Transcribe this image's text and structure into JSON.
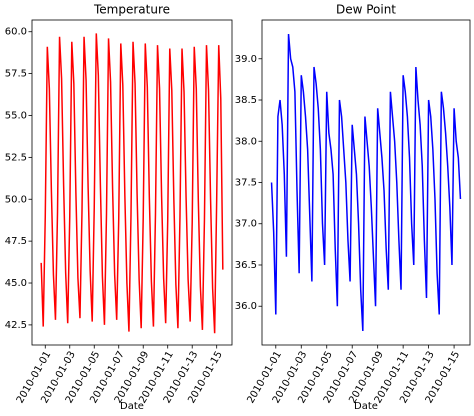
{
  "chart_data": [
    {
      "type": "line",
      "title": "Temperature",
      "x_label": "Date",
      "color": "#ff0000",
      "xlim": [
        "2009-12-30T22:00",
        "2010-01-16T06:00"
      ],
      "xticks": [
        "2010-01-01",
        "2010-01-03",
        "2010-01-05",
        "2010-01-07",
        "2010-01-09",
        "2010-01-11",
        "2010-01-13",
        "2010-01-15"
      ],
      "ylim": [
        41.3,
        60.7
      ],
      "yticks": [
        {
          "value": 42.5,
          "label": "42.5"
        },
        {
          "value": 45,
          "label": "45.0"
        },
        {
          "value": 47.5,
          "label": "47.5"
        },
        {
          "value": 50,
          "label": "50.0"
        },
        {
          "value": 52.5,
          "label": "52.5"
        },
        {
          "value": 55,
          "label": "55.0"
        },
        {
          "value": 57.5,
          "label": "57.5"
        },
        {
          "value": 60,
          "label": "60.0"
        }
      ],
      "x": [
        "2009-12-31T16:00",
        "2009-12-31T20:00",
        "2010-01-01T00:00",
        "2010-01-01T04:00",
        "2010-01-01T08:00",
        "2010-01-01T12:00",
        "2010-01-01T16:00",
        "2010-01-01T20:00",
        "2010-01-02T00:00",
        "2010-01-02T04:00",
        "2010-01-02T08:00",
        "2010-01-02T12:00",
        "2010-01-02T16:00",
        "2010-01-02T20:00",
        "2010-01-03T00:00",
        "2010-01-03T04:00",
        "2010-01-03T08:00",
        "2010-01-03T12:00",
        "2010-01-03T16:00",
        "2010-01-03T20:00",
        "2010-01-04T00:00",
        "2010-01-04T04:00",
        "2010-01-04T08:00",
        "2010-01-04T12:00",
        "2010-01-04T16:00",
        "2010-01-04T20:00",
        "2010-01-05T00:00",
        "2010-01-05T04:00",
        "2010-01-05T08:00",
        "2010-01-05T12:00",
        "2010-01-05T16:00",
        "2010-01-05T20:00",
        "2010-01-06T00:00",
        "2010-01-06T04:00",
        "2010-01-06T08:00",
        "2010-01-06T12:00",
        "2010-01-06T16:00",
        "2010-01-06T20:00",
        "2010-01-07T00:00",
        "2010-01-07T04:00",
        "2010-01-07T08:00",
        "2010-01-07T12:00",
        "2010-01-07T16:00",
        "2010-01-07T20:00",
        "2010-01-08T00:00",
        "2010-01-08T04:00",
        "2010-01-08T08:00",
        "2010-01-08T12:00",
        "2010-01-08T16:00",
        "2010-01-08T20:00",
        "2010-01-09T00:00",
        "2010-01-09T04:00",
        "2010-01-09T08:00",
        "2010-01-09T12:00",
        "2010-01-09T16:00",
        "2010-01-09T20:00",
        "2010-01-10T00:00",
        "2010-01-10T04:00",
        "2010-01-10T08:00",
        "2010-01-10T12:00",
        "2010-01-10T16:00",
        "2010-01-10T20:00",
        "2010-01-11T00:00",
        "2010-01-11T04:00",
        "2010-01-11T08:00",
        "2010-01-11T12:00",
        "2010-01-11T16:00",
        "2010-01-11T20:00",
        "2010-01-12T00:00",
        "2010-01-12T04:00",
        "2010-01-12T08:00",
        "2010-01-12T12:00",
        "2010-01-12T16:00",
        "2010-01-12T20:00",
        "2010-01-13T00:00",
        "2010-01-13T04:00",
        "2010-01-13T08:00",
        "2010-01-13T12:00",
        "2010-01-13T16:00",
        "2010-01-13T20:00",
        "2010-01-14T00:00",
        "2010-01-14T04:00",
        "2010-01-14T08:00",
        "2010-01-14T12:00",
        "2010-01-14T16:00",
        "2010-01-14T20:00",
        "2010-01-15T00:00",
        "2010-01-15T04:00",
        "2010-01-15T08:00",
        "2010-01-15T12:00"
      ],
      "values": [
        46.2,
        42.4,
        49.0,
        59.1,
        56.6,
        50.5,
        45.5,
        42.8,
        49.2,
        59.7,
        57.2,
        50.8,
        45.6,
        42.6,
        49.0,
        59.4,
        56.9,
        50.4,
        45.3,
        42.9,
        49.3,
        59.7,
        57.1,
        50.7,
        45.7,
        42.7,
        49.5,
        59.9,
        57.4,
        50.9,
        45.4,
        42.5,
        49.1,
        59.6,
        57.0,
        50.6,
        45.5,
        42.8,
        48.8,
        59.3,
        56.8,
        50.2,
        45.0,
        42.1,
        49.0,
        59.4,
        56.9,
        50.3,
        45.2,
        42.3,
        48.9,
        59.3,
        56.7,
        50.1,
        45.1,
        42.4,
        49.1,
        59.2,
        56.6,
        50.2,
        45.3,
        42.6,
        48.7,
        59.0,
        56.5,
        50.0,
        44.9,
        42.3,
        48.9,
        59.0,
        56.4,
        50.1,
        45.2,
        42.7,
        48.6,
        59.1,
        56.6,
        49.9,
        44.8,
        42.2,
        48.8,
        59.2,
        56.5,
        50.0,
        44.7,
        42.0,
        50.0,
        59.2,
        56.0,
        45.8
      ]
    },
    {
      "type": "line",
      "title": "Dew Point",
      "x_label": "Date",
      "color": "#0000ff",
      "xlim": [
        "2009-12-30T22:00",
        "2010-01-16T06:00"
      ],
      "xticks": [
        "2010-01-01",
        "2010-01-03",
        "2010-01-05",
        "2010-01-07",
        "2010-01-09",
        "2010-01-11",
        "2010-01-13",
        "2010-01-15"
      ],
      "ylim": [
        35.53,
        39.47
      ],
      "yticks": [
        {
          "value": 36,
          "label": "36.0"
        },
        {
          "value": 36.5,
          "label": "36.5"
        },
        {
          "value": 37,
          "label": "37.0"
        },
        {
          "value": 37.5,
          "label": "37.5"
        },
        {
          "value": 38,
          "label": "38.0"
        },
        {
          "value": 38.5,
          "label": "38.5"
        },
        {
          "value": 39,
          "label": "39.0"
        }
      ],
      "x": [
        "2009-12-31T16:00",
        "2009-12-31T20:00",
        "2010-01-01T00:00",
        "2010-01-01T04:00",
        "2010-01-01T08:00",
        "2010-01-01T12:00",
        "2010-01-01T16:00",
        "2010-01-01T20:00",
        "2010-01-02T00:00",
        "2010-01-02T04:00",
        "2010-01-02T08:00",
        "2010-01-02T12:00",
        "2010-01-02T16:00",
        "2010-01-02T20:00",
        "2010-01-03T00:00",
        "2010-01-03T04:00",
        "2010-01-03T08:00",
        "2010-01-03T12:00",
        "2010-01-03T16:00",
        "2010-01-03T20:00",
        "2010-01-04T00:00",
        "2010-01-04T04:00",
        "2010-01-04T08:00",
        "2010-01-04T12:00",
        "2010-01-04T16:00",
        "2010-01-04T20:00",
        "2010-01-05T00:00",
        "2010-01-05T04:00",
        "2010-01-05T08:00",
        "2010-01-05T12:00",
        "2010-01-05T16:00",
        "2010-01-05T20:00",
        "2010-01-06T00:00",
        "2010-01-06T04:00",
        "2010-01-06T08:00",
        "2010-01-06T12:00",
        "2010-01-06T16:00",
        "2010-01-06T20:00",
        "2010-01-07T00:00",
        "2010-01-07T04:00",
        "2010-01-07T08:00",
        "2010-01-07T12:00",
        "2010-01-07T16:00",
        "2010-01-07T20:00",
        "2010-01-08T00:00",
        "2010-01-08T04:00",
        "2010-01-08T08:00",
        "2010-01-08T12:00",
        "2010-01-08T16:00",
        "2010-01-08T20:00",
        "2010-01-09T00:00",
        "2010-01-09T04:00",
        "2010-01-09T08:00",
        "2010-01-09T12:00",
        "2010-01-09T16:00",
        "2010-01-09T20:00",
        "2010-01-10T00:00",
        "2010-01-10T04:00",
        "2010-01-10T08:00",
        "2010-01-10T12:00",
        "2010-01-10T16:00",
        "2010-01-10T20:00",
        "2010-01-11T00:00",
        "2010-01-11T04:00",
        "2010-01-11T08:00",
        "2010-01-11T12:00",
        "2010-01-11T16:00",
        "2010-01-11T20:00",
        "2010-01-12T00:00",
        "2010-01-12T04:00",
        "2010-01-12T08:00",
        "2010-01-12T12:00",
        "2010-01-12T16:00",
        "2010-01-12T20:00",
        "2010-01-13T00:00",
        "2010-01-13T04:00",
        "2010-01-13T08:00",
        "2010-01-13T12:00",
        "2010-01-13T16:00",
        "2010-01-13T20:00",
        "2010-01-14T00:00",
        "2010-01-14T04:00",
        "2010-01-14T08:00",
        "2010-01-14T12:00",
        "2010-01-14T16:00",
        "2010-01-14T20:00",
        "2010-01-15T00:00",
        "2010-01-15T04:00",
        "2010-01-15T08:00",
        "2010-01-15T12:00"
      ],
      "values": [
        37.5,
        36.9,
        35.9,
        38.3,
        38.5,
        38.2,
        37.6,
        36.6,
        39.3,
        39.0,
        38.9,
        38.6,
        37.4,
        36.4,
        38.8,
        38.6,
        38.3,
        37.9,
        37.1,
        36.3,
        38.9,
        38.7,
        38.4,
        37.9,
        37.0,
        36.5,
        38.6,
        38.1,
        37.9,
        37.6,
        36.7,
        36.0,
        38.5,
        38.3,
        37.9,
        37.5,
        36.8,
        36.3,
        38.2,
        37.9,
        37.6,
        37.0,
        36.2,
        35.7,
        38.3,
        38.0,
        37.7,
        37.2,
        36.6,
        36.0,
        38.4,
        38.1,
        37.8,
        37.4,
        36.7,
        36.2,
        38.6,
        38.3,
        38.0,
        37.5,
        36.8,
        36.2,
        38.8,
        38.6,
        38.3,
        37.8,
        37.0,
        36.5,
        38.9,
        38.5,
        38.2,
        37.7,
        36.8,
        36.1,
        38.5,
        38.3,
        37.9,
        37.3,
        36.4,
        35.9,
        38.6,
        38.4,
        38.1,
        37.7,
        37.2,
        36.5,
        38.4,
        38.0,
        37.8,
        37.3
      ]
    }
  ]
}
